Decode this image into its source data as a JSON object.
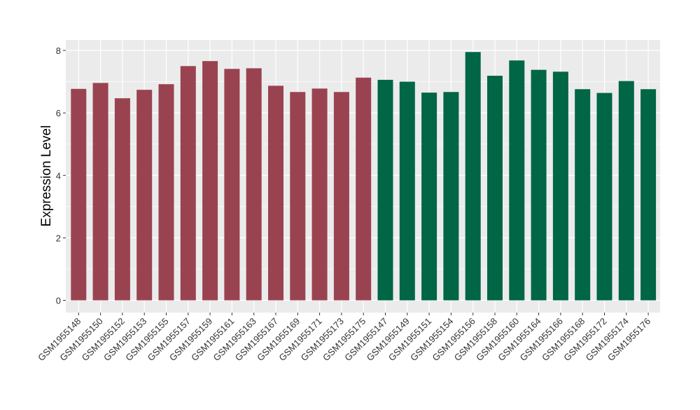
{
  "chart_data": {
    "type": "bar",
    "title": "",
    "xlabel": "",
    "ylabel": "Expression Level",
    "ylim": [
      0,
      8.35
    ],
    "yticks": [
      0,
      2,
      4,
      6,
      8
    ],
    "grid": true,
    "legend": "none",
    "colors": {
      "group_a": "#9a4350",
      "group_b": "#006645",
      "panel_background": "#ebebeb",
      "grid": "#ffffff"
    },
    "categories": [
      "GSM1955148",
      "GSM1955150",
      "GSM1955152",
      "GSM1955153",
      "GSM1955155",
      "GSM1955157",
      "GSM1955159",
      "GSM1955161",
      "GSM1955163",
      "GSM1955167",
      "GSM1955169",
      "GSM1955171",
      "GSM1955173",
      "GSM1955175",
      "GSM1955147",
      "GSM1955149",
      "GSM1955151",
      "GSM1955154",
      "GSM1955156",
      "GSM1955158",
      "GSM1955160",
      "GSM1955164",
      "GSM1955166",
      "GSM1955168",
      "GSM1955172",
      "GSM1955174",
      "GSM1955176"
    ],
    "values": [
      6.77,
      6.96,
      6.47,
      6.74,
      6.92,
      7.5,
      7.66,
      7.41,
      7.43,
      6.87,
      6.67,
      6.78,
      6.67,
      7.13,
      7.06,
      7.0,
      6.65,
      6.67,
      7.95,
      7.19,
      7.68,
      7.38,
      7.32,
      6.76,
      6.64,
      7.02,
      6.76
    ],
    "groups": [
      "a",
      "a",
      "a",
      "a",
      "a",
      "a",
      "a",
      "a",
      "a",
      "a",
      "a",
      "a",
      "a",
      "a",
      "b",
      "b",
      "b",
      "b",
      "b",
      "b",
      "b",
      "b",
      "b",
      "b",
      "b",
      "b",
      "b"
    ]
  }
}
